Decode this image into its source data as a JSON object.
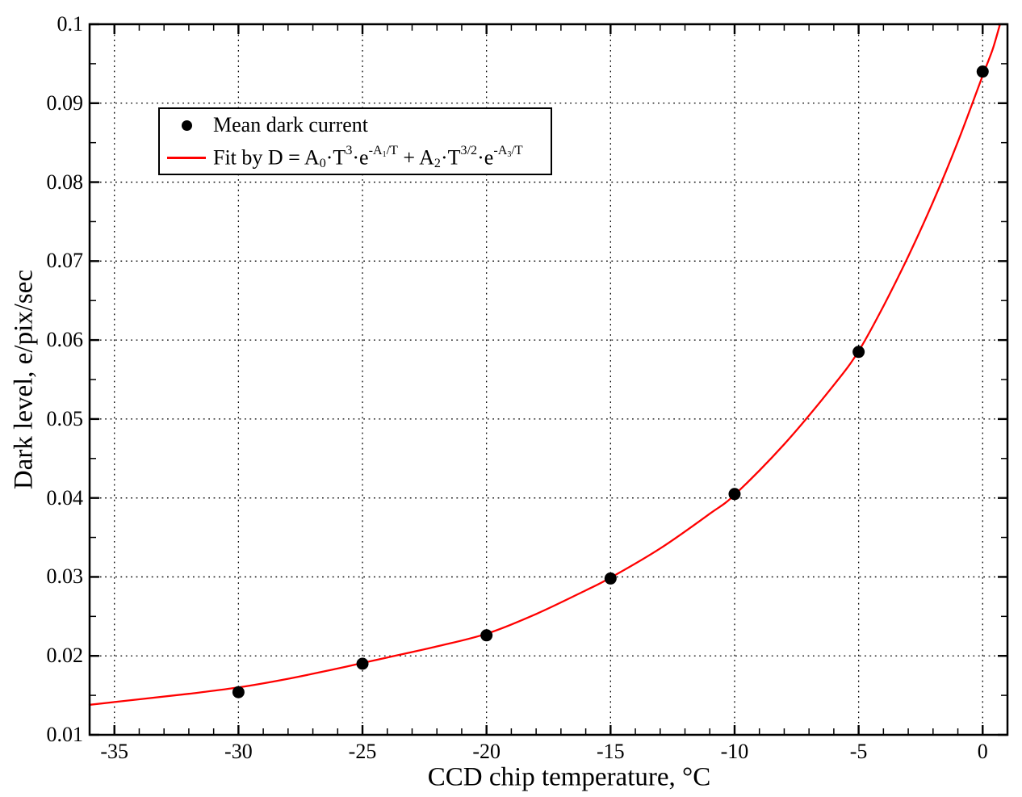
{
  "figure": {
    "background": "#ffffff",
    "axis_color": "#000000",
    "accent_color": "#ff0000"
  },
  "chart_data": {
    "type": "scatter",
    "title": "",
    "xlabel": "CCD chip temperature, °C",
    "ylabel": "Dark level, e/pix/sec",
    "xlim": [
      -36,
      1
    ],
    "ylim": [
      0.01,
      0.1
    ],
    "x_major_ticks": [
      -35,
      -30,
      -25,
      -20,
      -15,
      -10,
      -5,
      0
    ],
    "x_tick_labels": [
      "-35",
      "-30",
      "-25",
      "-20",
      "-15",
      "-10",
      "-5",
      "0"
    ],
    "x_minor_tick_step": 1,
    "y_major_ticks": [
      0.01,
      0.02,
      0.03,
      0.04,
      0.05,
      0.06,
      0.07,
      0.08,
      0.09,
      0.1
    ],
    "y_tick_labels": [
      "0.01",
      "0.02",
      "0.03",
      "0.04",
      "0.05",
      "0.06",
      "0.07",
      "0.08",
      "0.09",
      "0.1"
    ],
    "y_minor_tick_step": 0.005,
    "grid": {
      "style": "dotted",
      "color": "#000000",
      "at": "major-ticks"
    },
    "legend": {
      "position": "top-left",
      "border_color": "#000000",
      "entries": [
        {
          "marker": "dot",
          "color": "#000000",
          "label": "Mean dark current"
        },
        {
          "marker": "line",
          "color": "#ff0000",
          "label_rich": "Fit by D = A_0·T^{3}·e^{-A_1/T} + A_2·T^{3/2}·e^{-A_3/T}"
        }
      ]
    },
    "series": [
      {
        "name": "Mean dark current",
        "type": "scatter",
        "color": "#000000",
        "marker": "filled-circle",
        "marker_radius": 7.5,
        "points": {
          "x": [
            -30,
            -25,
            -20,
            -15,
            -10,
            -5,
            0
          ],
          "y": [
            0.0154,
            0.019,
            0.0226,
            0.0298,
            0.0405,
            0.0585,
            0.094
          ]
        }
      },
      {
        "name": "Fit curve",
        "type": "line",
        "color": "#ff0000",
        "line_width": 2.3,
        "points": {
          "x": [
            -36,
            -34,
            -32,
            -30,
            -28,
            -26,
            -25,
            -24,
            -22,
            -20,
            -18,
            -16,
            -15,
            -13,
            -11,
            -10,
            -8,
            -6,
            -5,
            -4,
            -3,
            -2,
            -1,
            0,
            0.4,
            0.7
          ],
          "y": [
            0.0138,
            0.0145,
            0.0152,
            0.016,
            0.0171,
            0.0184,
            0.0191,
            0.0198,
            0.0212,
            0.0228,
            0.0253,
            0.0283,
            0.0299,
            0.0336,
            0.038,
            0.0404,
            0.0468,
            0.0543,
            0.0586,
            0.0643,
            0.0706,
            0.0775,
            0.0851,
            0.0935,
            0.0968,
            0.1
          ]
        }
      }
    ]
  }
}
